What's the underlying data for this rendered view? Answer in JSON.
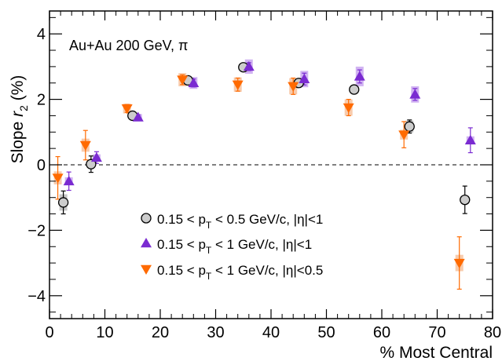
{
  "chart_data": {
    "type": "scatter",
    "annotation": "Au+Au 200 GeV, π",
    "xlabel": "% Most Central",
    "ylabel": {
      "main": "Slope ",
      "var": "r",
      "sub": "2",
      "unit": " (%)"
    },
    "xlim": [
      0,
      80
    ],
    "ylim": [
      -4.7,
      4.7
    ],
    "x_ticks": [
      0,
      10,
      20,
      30,
      40,
      50,
      60,
      70,
      80
    ],
    "y_ticks": [
      -4,
      -2,
      0,
      2,
      4
    ],
    "x_tick_labels": [
      "0",
      "10",
      "20",
      "30",
      "40",
      "50",
      "60",
      "70",
      "80"
    ],
    "y_tick_labels": [
      "−4",
      "−2",
      "0",
      "2",
      "4"
    ],
    "reference_line": {
      "y": 0,
      "style": "dashed"
    },
    "legend_position": "bottom-center",
    "colors": {
      "series1_fill": "#cccccc",
      "series1_edge": "#000000",
      "series2": "#7a2bd1",
      "series2_sys": "#c9a6f0",
      "series3": "#ff6a00",
      "series3_sys": "#f7c29e"
    },
    "series": [
      {
        "name": "0.15 < p_T < 0.5 GeV/c, |η|<1",
        "legend_parts": [
          "0.15 < p",
          "T",
          " < 0.5 GeV/c, |η|<1"
        ],
        "marker": "circle",
        "points": [
          {
            "x": 2.5,
            "y": -1.15,
            "err": 0.35,
            "sys": 0.25
          },
          {
            "x": 7.5,
            "y": 0.02,
            "err": 0.25,
            "sys": 0.1
          },
          {
            "x": 15,
            "y": 1.5,
            "err": 0.07,
            "sys": 0.07
          },
          {
            "x": 25,
            "y": 2.58,
            "err": 0.1,
            "sys": 0.12
          },
          {
            "x": 35,
            "y": 2.98,
            "err": 0.12,
            "sys": 0.1
          },
          {
            "x": 45,
            "y": 2.5,
            "err": 0.12,
            "sys": 0.12
          },
          {
            "x": 55,
            "y": 2.3,
            "err": 0.13,
            "sys": 0.13
          },
          {
            "x": 65,
            "y": 1.17,
            "err": 0.2,
            "sys": 0.18
          },
          {
            "x": 75,
            "y": -1.07,
            "err": 0.42,
            "sys": 0.12
          }
        ]
      },
      {
        "name": "0.15 < p_T < 1 GeV/c, |η|<1",
        "legend_parts": [
          "0.15 < p",
          "T",
          " < 1 GeV/c, |η|<1"
        ],
        "marker": "triangle-up",
        "points": [
          {
            "x": 3.5,
            "y": -0.5,
            "err": 0.28,
            "sys": 0.12
          },
          {
            "x": 8.5,
            "y": 0.22,
            "err": 0.18,
            "sys": 0.1
          },
          {
            "x": 16,
            "y": 1.45,
            "err": 0.08,
            "sys": 0.1
          },
          {
            "x": 26,
            "y": 2.5,
            "err": 0.12,
            "sys": 0.18
          },
          {
            "x": 36,
            "y": 3.0,
            "err": 0.12,
            "sys": 0.22
          },
          {
            "x": 46,
            "y": 2.62,
            "err": 0.18,
            "sys": 0.25
          },
          {
            "x": 56,
            "y": 2.7,
            "err": 0.2,
            "sys": 0.3
          },
          {
            "x": 66,
            "y": 2.15,
            "err": 0.18,
            "sys": 0.25
          },
          {
            "x": 76,
            "y": 0.75,
            "err": 0.38,
            "sys": 0.12
          }
        ]
      },
      {
        "name": "0.15 < p_T < 1 GeV/c, |η|<0.5",
        "legend_parts": [
          "0.15 < p",
          "T",
          " < 1 GeV/c, |η|<0.5"
        ],
        "marker": "triangle-down",
        "points": [
          {
            "x": 1.5,
            "y": -0.4,
            "err": 0.65,
            "sys": 0.2
          },
          {
            "x": 6.5,
            "y": 0.6,
            "err": 0.45,
            "sys": 0.2
          },
          {
            "x": 14,
            "y": 1.72,
            "err": 0.12,
            "sys": 0.15
          },
          {
            "x": 24,
            "y": 2.6,
            "err": 0.15,
            "sys": 0.2
          },
          {
            "x": 34,
            "y": 2.45,
            "err": 0.2,
            "sys": 0.22
          },
          {
            "x": 44,
            "y": 2.4,
            "err": 0.25,
            "sys": 0.25
          },
          {
            "x": 54,
            "y": 1.75,
            "err": 0.25,
            "sys": 0.25
          },
          {
            "x": 64,
            "y": 0.92,
            "err": 0.4,
            "sys": 0.15
          },
          {
            "x": 74,
            "y": -3.0,
            "err": 0.8,
            "sys": 0.25
          }
        ]
      }
    ]
  }
}
